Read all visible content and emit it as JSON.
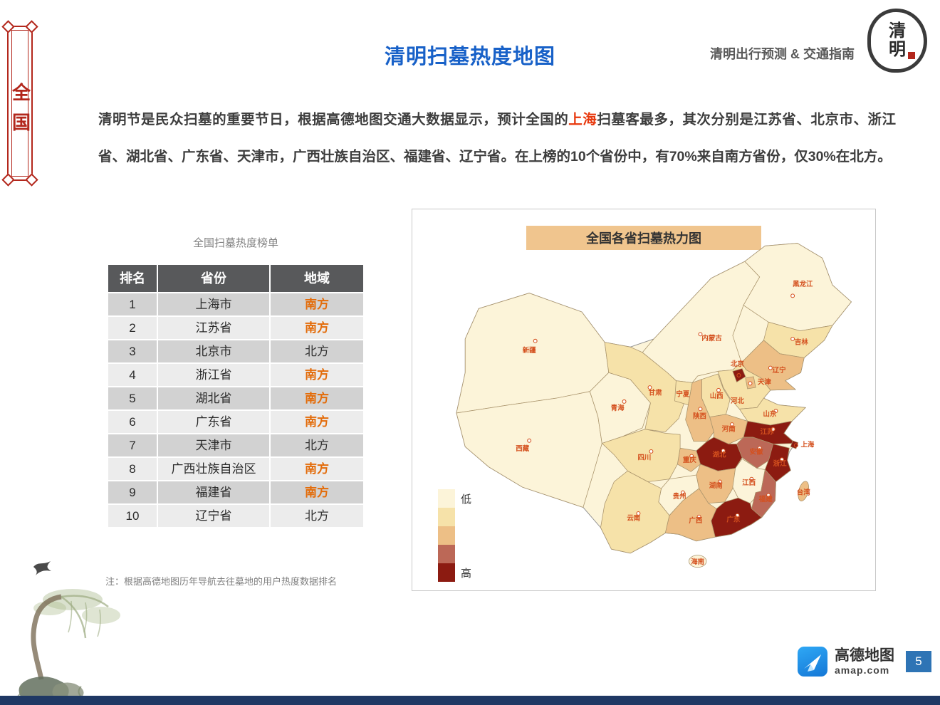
{
  "header": {
    "title": "清明扫墓热度地图",
    "right_tagline": "清明出行预测 & 交通指南",
    "logo_char_top": "清",
    "logo_char_bottom": "明",
    "side_label": "全国"
  },
  "intro": {
    "part1": "清明节是民众扫墓的重要节日，根据高德地图交通大数据显示，预计全国的",
    "highlight": "上海",
    "part2": "扫墓客最多，其次分别是江苏省、北京市、浙江省、湖北省、广东省、天津市，广西壮族自治区、福建省、辽宁省。在上榜的10个省份中，有70%来自南方省份，仅30%在北方。"
  },
  "table": {
    "title": "全国扫墓热度榜单",
    "columns": [
      "排名",
      "省份",
      "地域"
    ],
    "region_values": {
      "south": "南方",
      "north": "北方"
    },
    "rows": [
      {
        "rank": "1",
        "province": "上海市",
        "region": "南方"
      },
      {
        "rank": "2",
        "province": "江苏省",
        "region": "南方"
      },
      {
        "rank": "3",
        "province": "北京市",
        "region": "北方"
      },
      {
        "rank": "4",
        "province": "浙江省",
        "region": "南方"
      },
      {
        "rank": "5",
        "province": "湖北省",
        "region": "南方"
      },
      {
        "rank": "6",
        "province": "广东省",
        "region": "南方"
      },
      {
        "rank": "7",
        "province": "天津市",
        "region": "北方"
      },
      {
        "rank": "8",
        "province": "广西壮族自治区",
        "region": "南方"
      },
      {
        "rank": "9",
        "province": "福建省",
        "region": "南方"
      },
      {
        "rank": "10",
        "province": "辽宁省",
        "region": "北方"
      }
    ],
    "note": "注：根据高德地图历年导航去往墓地的用户热度数据排名"
  },
  "map": {
    "panel_title": "全国各省扫墓热力图",
    "legend": {
      "colors": [
        "#FCF4D9",
        "#F6E2A9",
        "#EDBF86",
        "#BC6857",
        "#8C1B11"
      ],
      "labels": [
        "低",
        "",
        "",
        "",
        "高"
      ]
    },
    "provinces": [
      {
        "id": "heilongjiang",
        "name": "黑龙江",
        "level": 1,
        "label": [
          556,
          72
        ],
        "marker": [
          541,
          86
        ]
      },
      {
        "id": "jilin",
        "name": "吉林",
        "level": 2,
        "label": [
          554,
          158
        ],
        "marker": [
          541,
          150
        ]
      },
      {
        "id": "liaoning",
        "name": "辽宁",
        "level": 3,
        "label": [
          521,
          200
        ],
        "marker": [
          508,
          193
        ]
      },
      {
        "id": "neimenggu",
        "name": "内蒙古",
        "level": 1,
        "label": [
          421,
          152
        ],
        "marker": [
          404,
          143
        ]
      },
      {
        "id": "xinjiang",
        "name": "新疆",
        "level": 1,
        "label": [
          150,
          170
        ],
        "marker": [
          159,
          153
        ]
      },
      {
        "id": "xizang",
        "name": "西藏",
        "level": 1,
        "label": [
          140,
          316
        ],
        "marker": [
          150,
          301
        ]
      },
      {
        "id": "qinghai",
        "name": "青海",
        "level": 1,
        "label": [
          281,
          256
        ],
        "marker": [
          291,
          243
        ]
      },
      {
        "id": "gansu",
        "name": "甘肃",
        "level": 2,
        "label": [
          337,
          233
        ],
        "marker": [
          329,
          222
        ]
      },
      {
        "id": "ningxia",
        "name": "宁夏",
        "level": 2,
        "label": [
          378,
          235
        ],
        "marker": null
      },
      {
        "id": "shaanxi",
        "name": "陕西",
        "level": 3,
        "label": [
          403,
          268
        ],
        "marker": [
          404,
          254
        ]
      },
      {
        "id": "shanxi",
        "name": "山西",
        "level": 2,
        "label": [
          428,
          238
        ],
        "marker": [
          431,
          226
        ]
      },
      {
        "id": "hebei",
        "name": "河北",
        "level": 2,
        "label": [
          459,
          245
        ],
        "marker": null
      },
      {
        "id": "beijing",
        "name": "北京",
        "level": 5,
        "label": [
          459,
          190
        ],
        "marker": [
          461,
          204
        ],
        "marker_dark": true
      },
      {
        "id": "tianjin",
        "name": "天津",
        "level": 3,
        "label": [
          499,
          217
        ],
        "marker": [
          478,
          216
        ]
      },
      {
        "id": "shandong",
        "name": "山东",
        "level": 2,
        "label": [
          507,
          265
        ],
        "marker": [
          516,
          257
        ]
      },
      {
        "id": "henan",
        "name": "河南",
        "level": 3,
        "label": [
          446,
          287
        ],
        "marker": [
          451,
          277
        ]
      },
      {
        "id": "jiangsu",
        "name": "江苏",
        "level": 5,
        "label": [
          503,
          291
        ],
        "marker": [
          512,
          284
        ]
      },
      {
        "id": "shanghai",
        "name": "上海",
        "level": 5,
        "label": [
          563,
          310
        ],
        "marker": [
          546,
          308
        ],
        "marker_dark": true
      },
      {
        "id": "anhui",
        "name": "安徽",
        "level": 4,
        "label": [
          487,
          321
        ],
        "marker": [
          492,
          312
        ]
      },
      {
        "id": "zhejiang",
        "name": "浙江",
        "level": 5,
        "label": [
          522,
          338
        ],
        "marker": [
          525,
          329
        ]
      },
      {
        "id": "hubei",
        "name": "湖北",
        "level": 5,
        "label": [
          432,
          325
        ],
        "marker": [
          438,
          316
        ]
      },
      {
        "id": "chongqing",
        "name": "重庆",
        "level": 3,
        "label": [
          388,
          333
        ],
        "marker": [
          391,
          324
        ]
      },
      {
        "id": "sichuan",
        "name": "四川",
        "level": 2,
        "label": [
          321,
          329
        ],
        "marker": [
          331,
          317
        ]
      },
      {
        "id": "hunan",
        "name": "湖南",
        "level": 3,
        "label": [
          427,
          371
        ],
        "marker": [
          433,
          362
        ]
      },
      {
        "id": "jiangxi",
        "name": "江西",
        "level": 1,
        "label": [
          476,
          367
        ],
        "marker": [
          480,
          358
        ]
      },
      {
        "id": "fujian",
        "name": "福建",
        "level": 4,
        "label": [
          501,
          391
        ],
        "marker": [
          505,
          382
        ]
      },
      {
        "id": "guizhou",
        "name": "贵州",
        "level": 1,
        "label": [
          373,
          387
        ],
        "marker": [
          378,
          378
        ]
      },
      {
        "id": "yunnan",
        "name": "云南",
        "level": 2,
        "label": [
          305,
          419
        ],
        "marker": [
          312,
          409
        ]
      },
      {
        "id": "guangxi",
        "name": "广西",
        "level": 3,
        "label": [
          397,
          423
        ],
        "marker": [
          402,
          414
        ]
      },
      {
        "id": "guangdong",
        "name": "广东",
        "level": 5,
        "label": [
          453,
          421
        ],
        "marker": [
          459,
          412
        ]
      },
      {
        "id": "taiwan",
        "name": "台湾",
        "level": 3,
        "label": [
          557,
          381
        ],
        "marker": null
      },
      {
        "id": "hainan",
        "name": "海南",
        "level": 1,
        "label": [
          400,
          484
        ],
        "marker": null
      }
    ]
  },
  "footer": {
    "brand": "高德地图",
    "domain": "amap.com",
    "page_number": "5"
  },
  "colors": {
    "title_blue": "#1861C8",
    "highlight_red": "#E8380D",
    "south_orange": "#E36C0A",
    "banner_red": "#B3271C",
    "map_title_bg": "#F0C58E"
  }
}
